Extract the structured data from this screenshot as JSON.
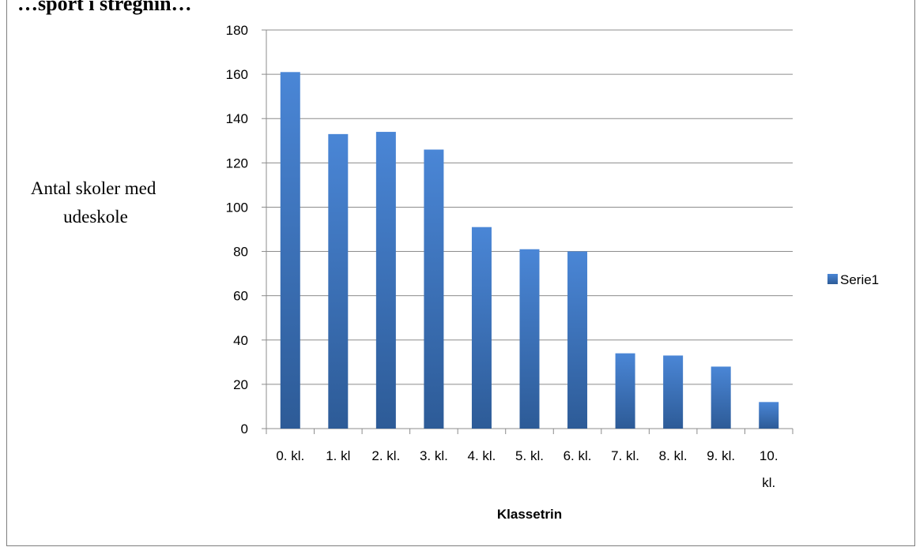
{
  "page": {
    "top_text": "…sport i stregnin…"
  },
  "chart_data": {
    "type": "bar",
    "categories": [
      "0. kl.",
      "1. kl",
      "2. kl.",
      "3. kl.",
      "4. kl.",
      "5. kl.",
      "6. kl.",
      "7. kl.",
      "8. kl.",
      "9. kl.",
      "10. kl."
    ],
    "category_label_lines": [
      [
        "0. kl."
      ],
      [
        "1. kl"
      ],
      [
        "2. kl."
      ],
      [
        "3. kl."
      ],
      [
        "4. kl."
      ],
      [
        "5. kl."
      ],
      [
        "6. kl."
      ],
      [
        "7. kl."
      ],
      [
        "8. kl."
      ],
      [
        "9. kl."
      ],
      [
        "10.",
        "kl."
      ]
    ],
    "series": [
      {
        "name": "Serie1",
        "values": [
          161,
          133,
          134,
          126,
          91,
          81,
          80,
          34,
          33,
          28,
          12
        ]
      }
    ],
    "ylim": [
      0,
      180
    ],
    "yticks": [
      0,
      20,
      40,
      60,
      80,
      100,
      120,
      140,
      160,
      180
    ],
    "ylabel_lines": [
      "Antal skoler med",
      "udeskole"
    ],
    "xlabel": "Klassetrin",
    "grid": true,
    "legend_position": "right",
    "colors": {
      "bar_top": "#4a86d6",
      "bar_bottom": "#2d5b97",
      "grid": "#8c8c8c",
      "axis": "#8c8c8c"
    }
  }
}
